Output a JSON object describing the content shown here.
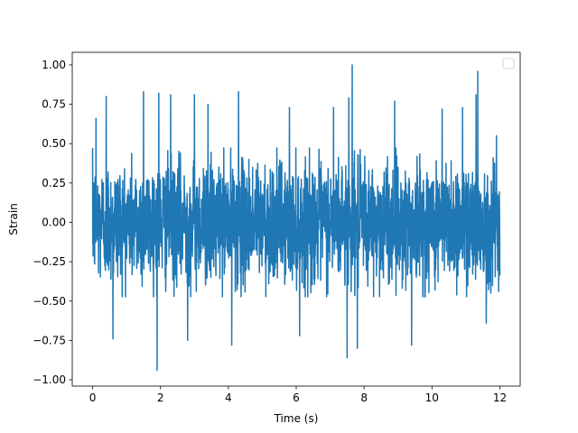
{
  "chart_data": {
    "type": "line",
    "title": "",
    "xlabel": "Time (s)",
    "ylabel": "Strain",
    "xlim": [
      -0.6,
      12.6
    ],
    "ylim": [
      -1.04,
      1.08
    ],
    "x_ticks": [
      0,
      2,
      4,
      6,
      8,
      10,
      12
    ],
    "x_tick_labels": [
      "0",
      "2",
      "4",
      "6",
      "8",
      "10",
      "12"
    ],
    "y_ticks": [
      -1.0,
      -0.75,
      -0.5,
      -0.25,
      0.0,
      0.25,
      0.5,
      0.75,
      1.0
    ],
    "y_tick_labels": [
      "−1.00",
      "−0.75",
      "−0.50",
      "−0.25",
      "0.00",
      "0.25",
      "0.50",
      "0.75",
      "1.00"
    ],
    "grid": false,
    "legend": {
      "placement": "top-right",
      "entries": []
    },
    "series": [
      {
        "color": "#1f77b4",
        "x_start": 0.0,
        "x_end": 12.0,
        "description_values": {
          "typical_envelope": [
            -0.45,
            0.45
          ],
          "peaks": [
            {
              "x": 0.1,
              "y": 0.66
            },
            {
              "x": 0.4,
              "y": 0.8
            },
            {
              "x": 0.6,
              "y": -0.74
            },
            {
              "x": 1.5,
              "y": 0.83
            },
            {
              "x": 1.9,
              "y": -0.94
            },
            {
              "x": 1.95,
              "y": 0.82
            },
            {
              "x": 2.3,
              "y": 0.81
            },
            {
              "x": 2.8,
              "y": -0.75
            },
            {
              "x": 3.0,
              "y": 0.81
            },
            {
              "x": 3.4,
              "y": 0.75
            },
            {
              "x": 4.1,
              "y": -0.78
            },
            {
              "x": 4.3,
              "y": 0.83
            },
            {
              "x": 5.8,
              "y": 0.73
            },
            {
              "x": 6.1,
              "y": -0.72
            },
            {
              "x": 7.1,
              "y": 0.73
            },
            {
              "x": 7.5,
              "y": -0.86
            },
            {
              "x": 7.55,
              "y": 0.79
            },
            {
              "x": 7.65,
              "y": 1.0
            },
            {
              "x": 7.8,
              "y": -0.8
            },
            {
              "x": 8.9,
              "y": 0.77
            },
            {
              "x": 9.4,
              "y": -0.78
            },
            {
              "x": 10.3,
              "y": 0.72
            },
            {
              "x": 10.9,
              "y": 0.73
            },
            {
              "x": 11.3,
              "y": 0.81
            },
            {
              "x": 11.35,
              "y": 0.96
            },
            {
              "x": 11.6,
              "y": -0.64
            },
            {
              "x": 11.9,
              "y": 0.55
            }
          ]
        }
      }
    ]
  }
}
